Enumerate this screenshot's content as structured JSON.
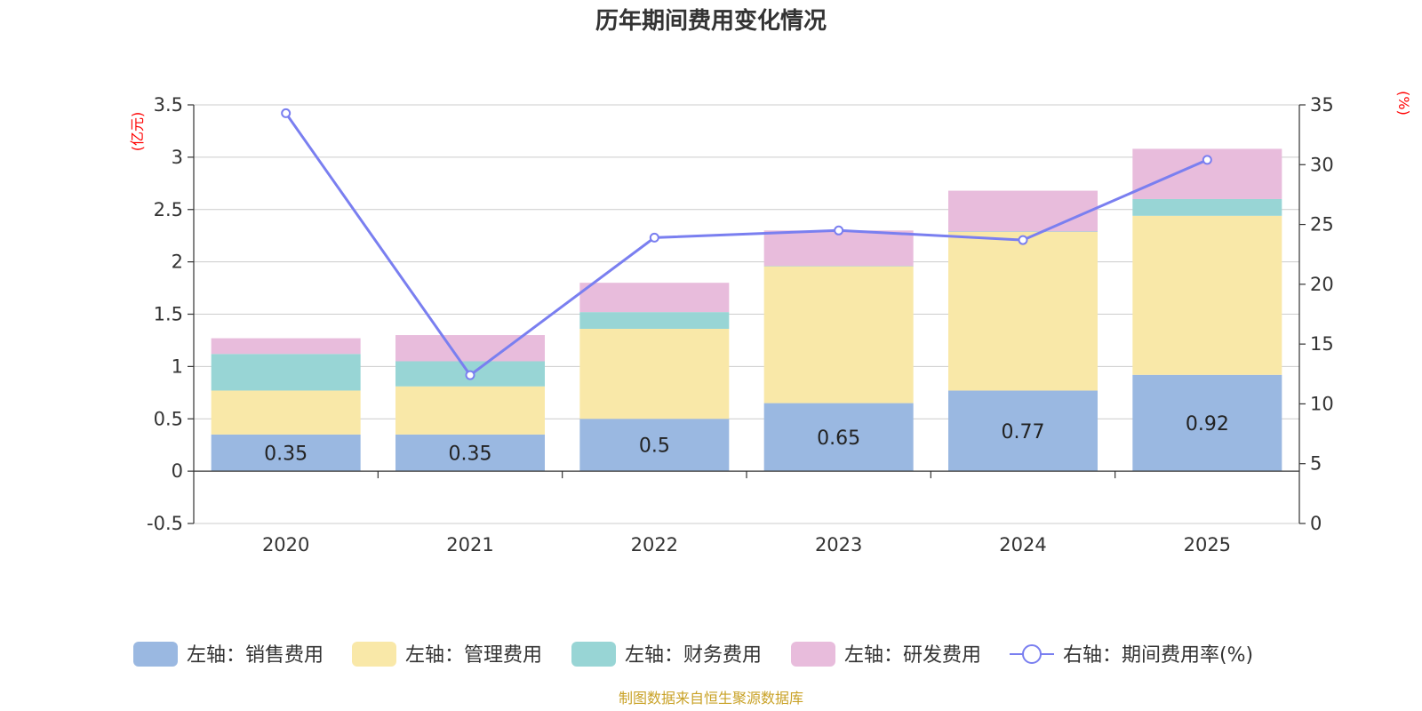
{
  "chart_data": {
    "type": "bar",
    "title": "历年期间费用变化情况",
    "categories": [
      "2020",
      "2021",
      "2022",
      "2023",
      "2024",
      "2025"
    ],
    "series": [
      {
        "name": "左轴：销售费用",
        "axis": "left",
        "kind": "bar",
        "color": "#9ab8e1",
        "values": [
          0.35,
          0.35,
          0.5,
          0.65,
          0.77,
          0.92
        ],
        "labels": [
          "0.35",
          "0.35",
          "0.5",
          "0.65",
          "0.77",
          "0.92"
        ]
      },
      {
        "name": "左轴：管理费用",
        "axis": "left",
        "kind": "bar",
        "color": "#f9e8a8",
        "values": [
          0.42,
          0.46,
          0.86,
          1.31,
          1.52,
          1.52
        ]
      },
      {
        "name": "左轴：财务费用",
        "axis": "left",
        "kind": "bar",
        "color": "#98d5d5",
        "values": [
          0.35,
          0.24,
          0.16,
          0.0,
          0.0,
          0.16
        ]
      },
      {
        "name": "左轴：研发费用",
        "axis": "left",
        "kind": "bar",
        "color": "#e8bcdc",
        "values": [
          0.15,
          0.25,
          0.28,
          0.34,
          0.39,
          0.48
        ]
      },
      {
        "name": "右轴：期间费用率(%)",
        "axis": "right",
        "kind": "line",
        "color": "#7a7ff0",
        "values": [
          34.3,
          12.4,
          23.9,
          24.5,
          23.7,
          30.4
        ]
      }
    ],
    "left_axis": {
      "unit": "(亿元)",
      "min": -0.5,
      "max": 3.5,
      "ticks": [
        -0.5,
        0,
        0.5,
        1,
        1.5,
        2,
        2.5,
        3,
        3.5
      ],
      "tick_labels": [
        "-0.5",
        "0",
        "0.5",
        "1",
        "1.5",
        "2",
        "2.5",
        "3",
        "3.5"
      ]
    },
    "right_axis": {
      "unit": "(%)",
      "min": 0,
      "max": 35,
      "ticks": [
        0,
        5,
        10,
        15,
        20,
        25,
        30,
        35
      ],
      "tick_labels": [
        "0",
        "5",
        "10",
        "15",
        "20",
        "25",
        "30",
        "35"
      ]
    },
    "grid": true,
    "legend_position": "bottom",
    "source": "制图数据来自恒生聚源数据库"
  }
}
